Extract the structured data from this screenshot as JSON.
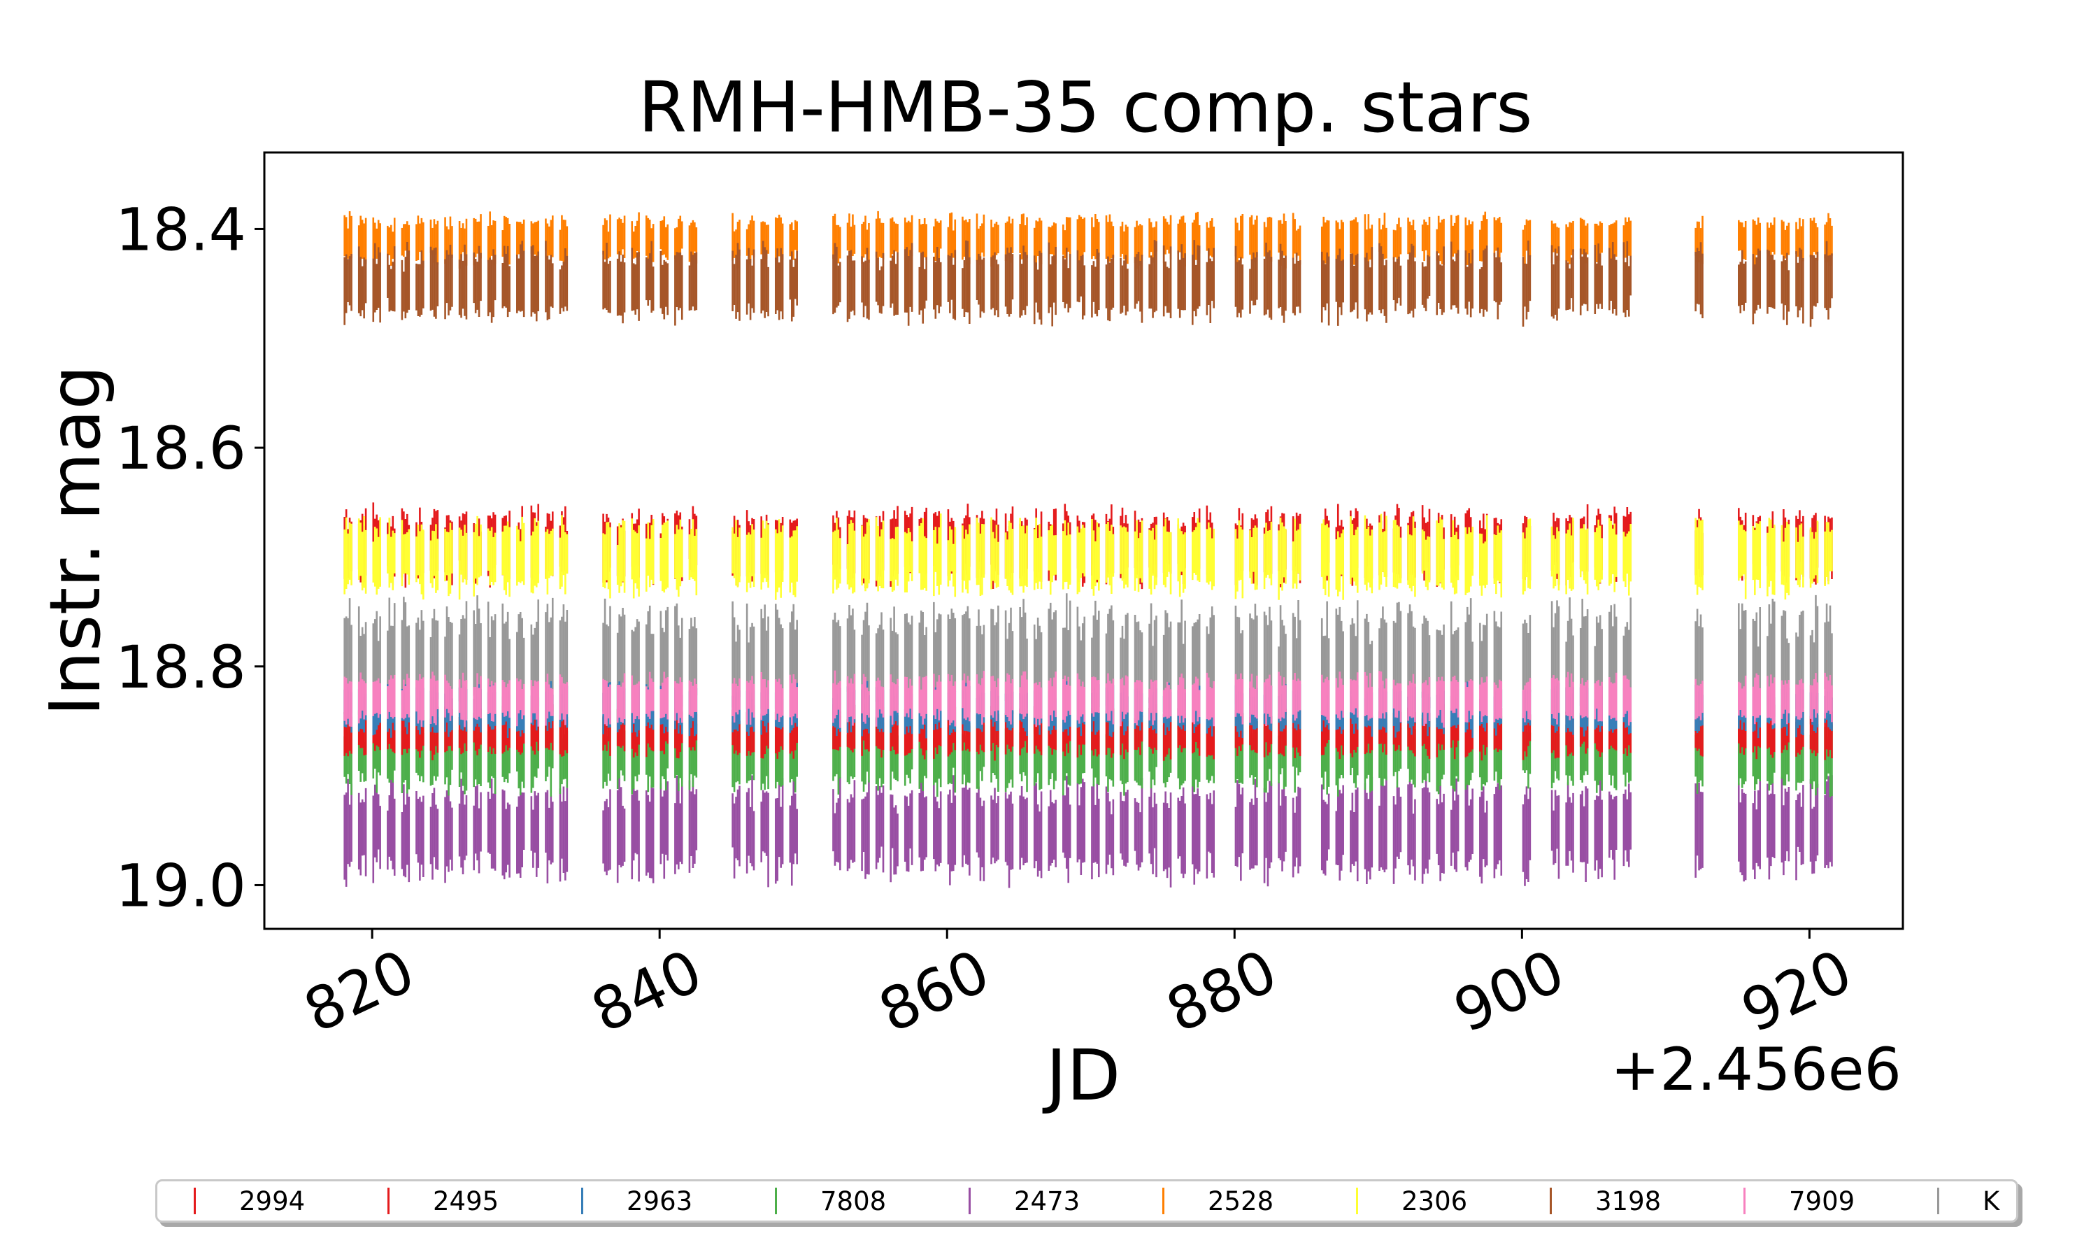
{
  "chart_data": {
    "type": "scatter",
    "title": "RMH-HMB-35 comp. stars",
    "xlabel": "JD",
    "ylabel": "Instr. mag",
    "x_offset_label": "+2.456e6",
    "xlim": [
      812.5,
      926.5
    ],
    "ylim": [
      19.04,
      18.33
    ],
    "y_inverted": true,
    "xticks": [
      820,
      840,
      860,
      880,
      900,
      920
    ],
    "yticks": [
      18.4,
      18.6,
      18.8,
      19.0
    ],
    "ytick_labels": [
      "18.4",
      "18.6",
      "18.8",
      "19.0"
    ],
    "grid": false,
    "legend_position": "below plot, single row",
    "marker": "vertical error bars per night",
    "nights": [
      818,
      819,
      820,
      821,
      822,
      823,
      824,
      825,
      826,
      827,
      828,
      829,
      830,
      831,
      832,
      833,
      836,
      837,
      838,
      839,
      840,
      841,
      842,
      845,
      846,
      847,
      848,
      849,
      852,
      853,
      854,
      855,
      856,
      857,
      858,
      859,
      860,
      861,
      862,
      863,
      864,
      865,
      866,
      867,
      868,
      869,
      870,
      871,
      872,
      873,
      874,
      875,
      876,
      877,
      878,
      880,
      881,
      882,
      883,
      884,
      886,
      887,
      888,
      889,
      890,
      891,
      892,
      893,
      894,
      895,
      896,
      897,
      898,
      900,
      902,
      903,
      904,
      905,
      906,
      907,
      912,
      915,
      916,
      917,
      918,
      919,
      920,
      921
    ],
    "series": [
      {
        "name": "2994",
        "color": "#e41a1c",
        "mag": 18.69,
        "spread": 0.03
      },
      {
        "name": "2495",
        "color": "#e41a1c",
        "mag": 18.86,
        "spread": 0.02
      },
      {
        "name": "2963",
        "color": "#377eb8",
        "mag": 18.84,
        "spread": 0.02
      },
      {
        "name": "7808",
        "color": "#4daf4a",
        "mag": 18.88,
        "spread": 0.03
      },
      {
        "name": "2473",
        "color": "#984ea3",
        "mag": 18.95,
        "spread": 0.04
      },
      {
        "name": "2528",
        "color": "#ff7f00",
        "mag": 18.41,
        "spread": 0.02
      },
      {
        "name": "2306",
        "color": "#ffff33",
        "mag": 18.7,
        "spread": 0.03
      },
      {
        "name": "3198",
        "color": "#a65628",
        "mag": 18.45,
        "spread": 0.03
      },
      {
        "name": "7909",
        "color": "#f781bf",
        "mag": 18.83,
        "spread": 0.02
      },
      {
        "name": "K",
        "color": "#999999",
        "mag": 18.8,
        "spread": 0.05
      }
    ]
  }
}
